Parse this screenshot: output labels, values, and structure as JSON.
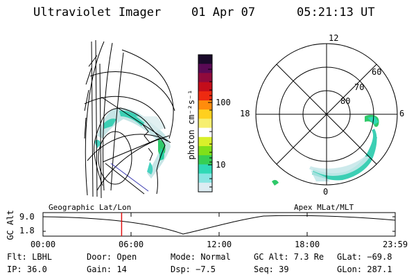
{
  "header": {
    "instrument": "Ultraviolet Imager",
    "date": "01 Apr 07",
    "time": "05:21:13 UT"
  },
  "colorbar": {
    "label": "photon cm⁻²s⁻¹",
    "ticks": [
      "100",
      "10"
    ],
    "colors": [
      "#1a0a2a",
      "#5a0a55",
      "#900a3c",
      "#c40d1a",
      "#ee2a10",
      "#ff8c0c",
      "#ffd01e",
      "#f7ef70",
      "#ffffff",
      "#d9f02a",
      "#7fe01a",
      "#36cf53",
      "#2fd9b6",
      "#88e5e2",
      "#dcecf2"
    ]
  },
  "polar": {
    "mlt_labels": [
      "12",
      "6",
      "0",
      "18"
    ],
    "mlat_labels": [
      "60",
      "70",
      "80"
    ]
  },
  "timeline": {
    "left_label": "Geographic Lat/Lon",
    "right_label": "Apex MLat/MLT",
    "y_title": "GC Alt",
    "y_ticks": [
      "9.0",
      "1.8"
    ],
    "x_ticks": [
      "00:00",
      "06:00",
      "12:00",
      "18:00",
      "23:59"
    ],
    "marker_time": "05:21:13",
    "marker_color": "#e01010"
  },
  "status": [
    [
      "Flt: LBHL",
      "Door: Open",
      "Mode: Normal",
      "GC Alt: 7.3 Re",
      "GLat: −69.8"
    ],
    [
      "IP: 36.0",
      "Gain: 14",
      "Dsp:   −7.5",
      "Seq: 39",
      "GLon: 287.1"
    ]
  ]
}
